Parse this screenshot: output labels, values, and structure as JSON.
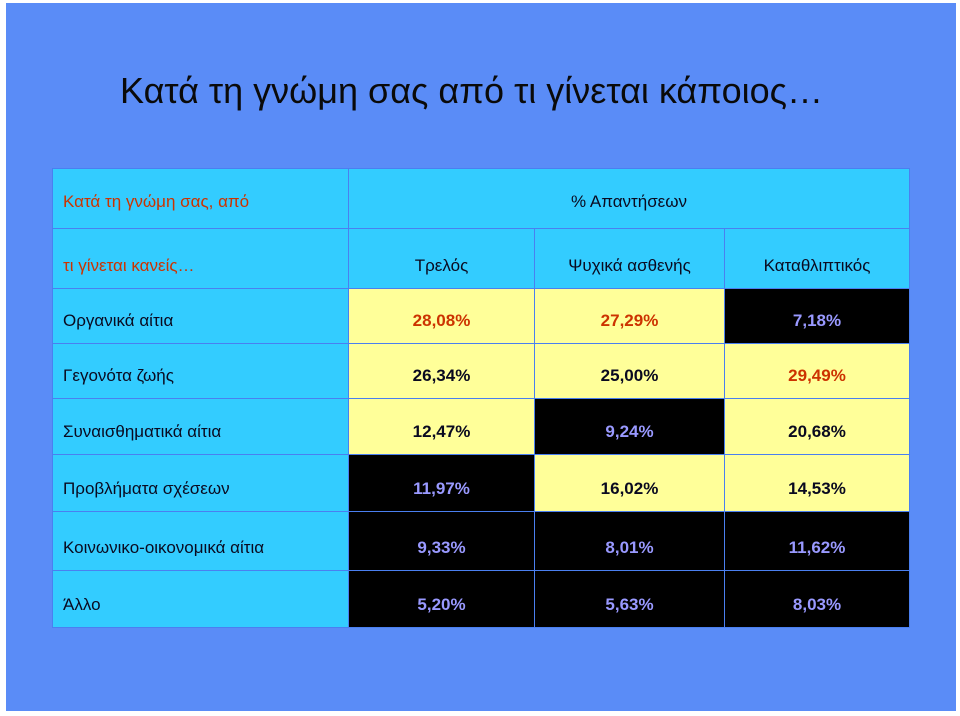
{
  "title": "Κατά τη γνώμη σας από τι γίνεται κάποιος…",
  "table": {
    "corner_line1": "Κατά τη γνώμη σας, από",
    "corner_line2": "τι γίνεται κανείς…",
    "super_header": "% Απαντήσεων",
    "columns": [
      "Τρελός",
      "Ψυχικά ασθενής",
      "Καταθλιπτικός"
    ],
    "rows": [
      {
        "label": "Οργανικά αίτια",
        "values": [
          "28,08%",
          "27,29%",
          "7,18%"
        ]
      },
      {
        "label": "Γεγονότα ζωής",
        "values": [
          "26,34%",
          "25,00%",
          "29,49%"
        ]
      },
      {
        "label": "Συναισθηματικά αίτια",
        "values": [
          "12,47%",
          "9,24%",
          "20,68%"
        ]
      },
      {
        "label": "Προβλήματα σχέσεων",
        "values": [
          "11,97%",
          "16,02%",
          "14,53%"
        ]
      },
      {
        "label": "Κοινωνικο-οικονομικά αίτια",
        "values": [
          "9,33%",
          "8,01%",
          "11,62%"
        ]
      },
      {
        "label": "Άλλο",
        "values": [
          "5,20%",
          "5,63%",
          "8,03%"
        ]
      }
    ],
    "colors": {
      "header_bg": "#33ccff",
      "light_cell": "#ffff99",
      "dark_cell": "#000000",
      "highlight_text": "#cc3300",
      "dark_text": "#9999ff",
      "panel_bg": "#5a8cf7"
    }
  }
}
